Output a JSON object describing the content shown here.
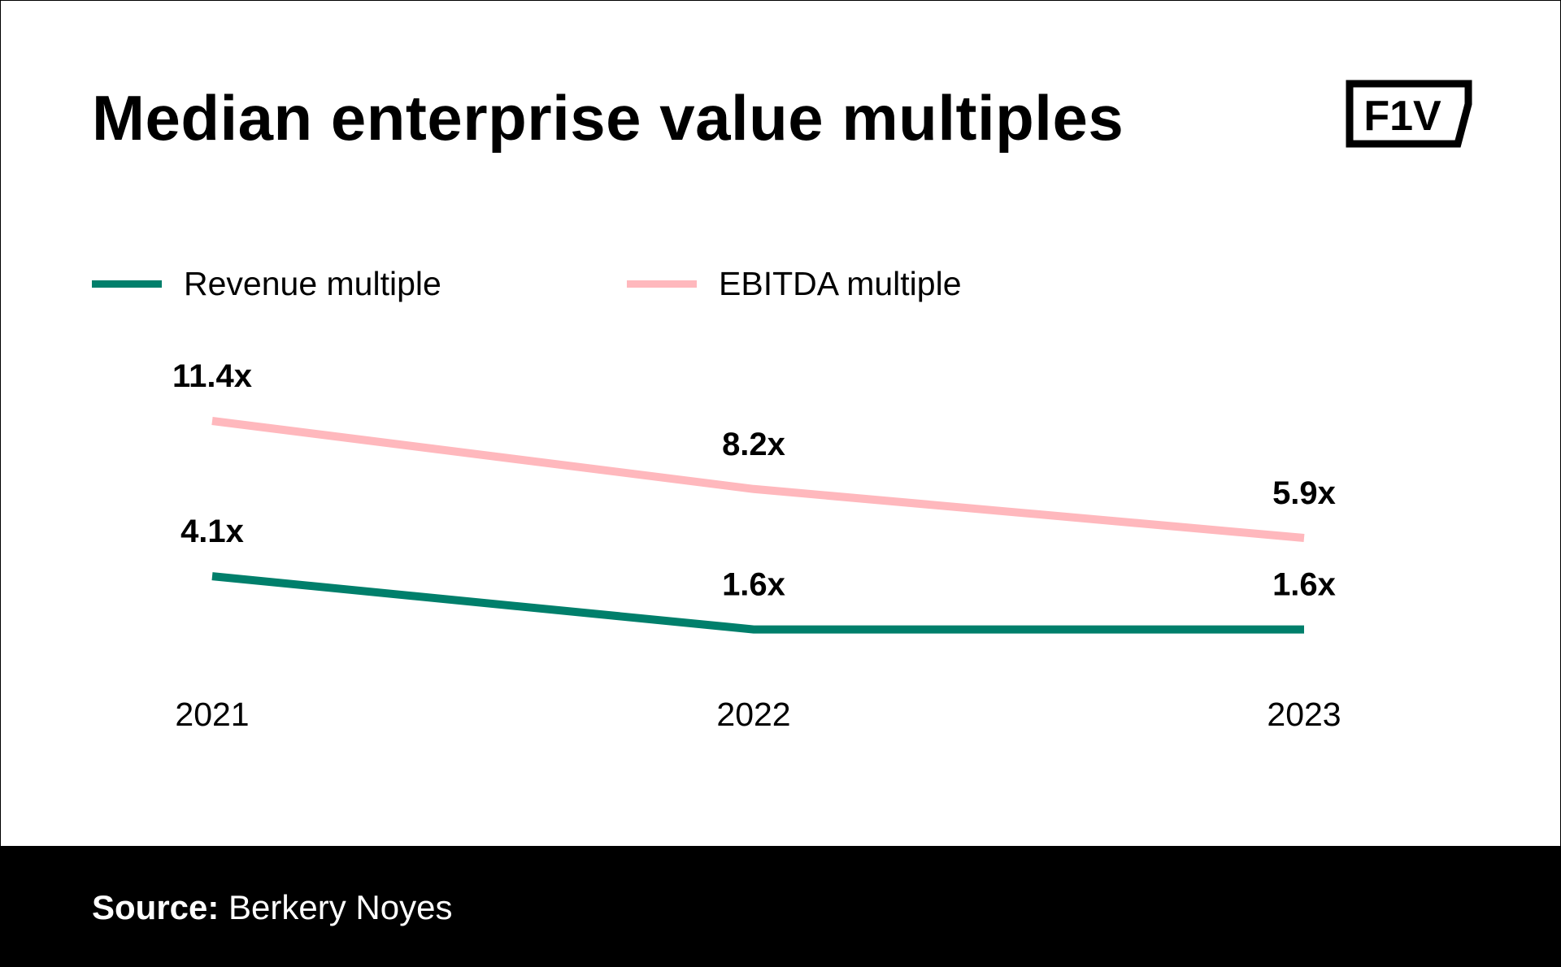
{
  "title": "Median enterprise value multiples",
  "logo_text": "F1V",
  "colors": {
    "revenue": "#007f6b",
    "ebitda": "#ffb8bd",
    "footer": "#000000"
  },
  "chart_data": {
    "type": "line",
    "title": "Median enterprise value multiples",
    "categories": [
      "2021",
      "2022",
      "2023"
    ],
    "series": [
      {
        "name": "Revenue multiple",
        "values": [
          4.1,
          1.6,
          1.6
        ],
        "labels": [
          "4.1x",
          "1.6x",
          "1.6x"
        ],
        "color": "#007f6b"
      },
      {
        "name": "EBITDA multiple",
        "values": [
          11.4,
          8.2,
          5.9
        ],
        "labels": [
          "11.4x",
          "8.2x",
          "5.9x"
        ],
        "color": "#ffb8bd"
      }
    ],
    "legend": "top-left",
    "grid": false
  },
  "footer": {
    "source_label": "Source:",
    "source_value": "Berkery Noyes"
  }
}
